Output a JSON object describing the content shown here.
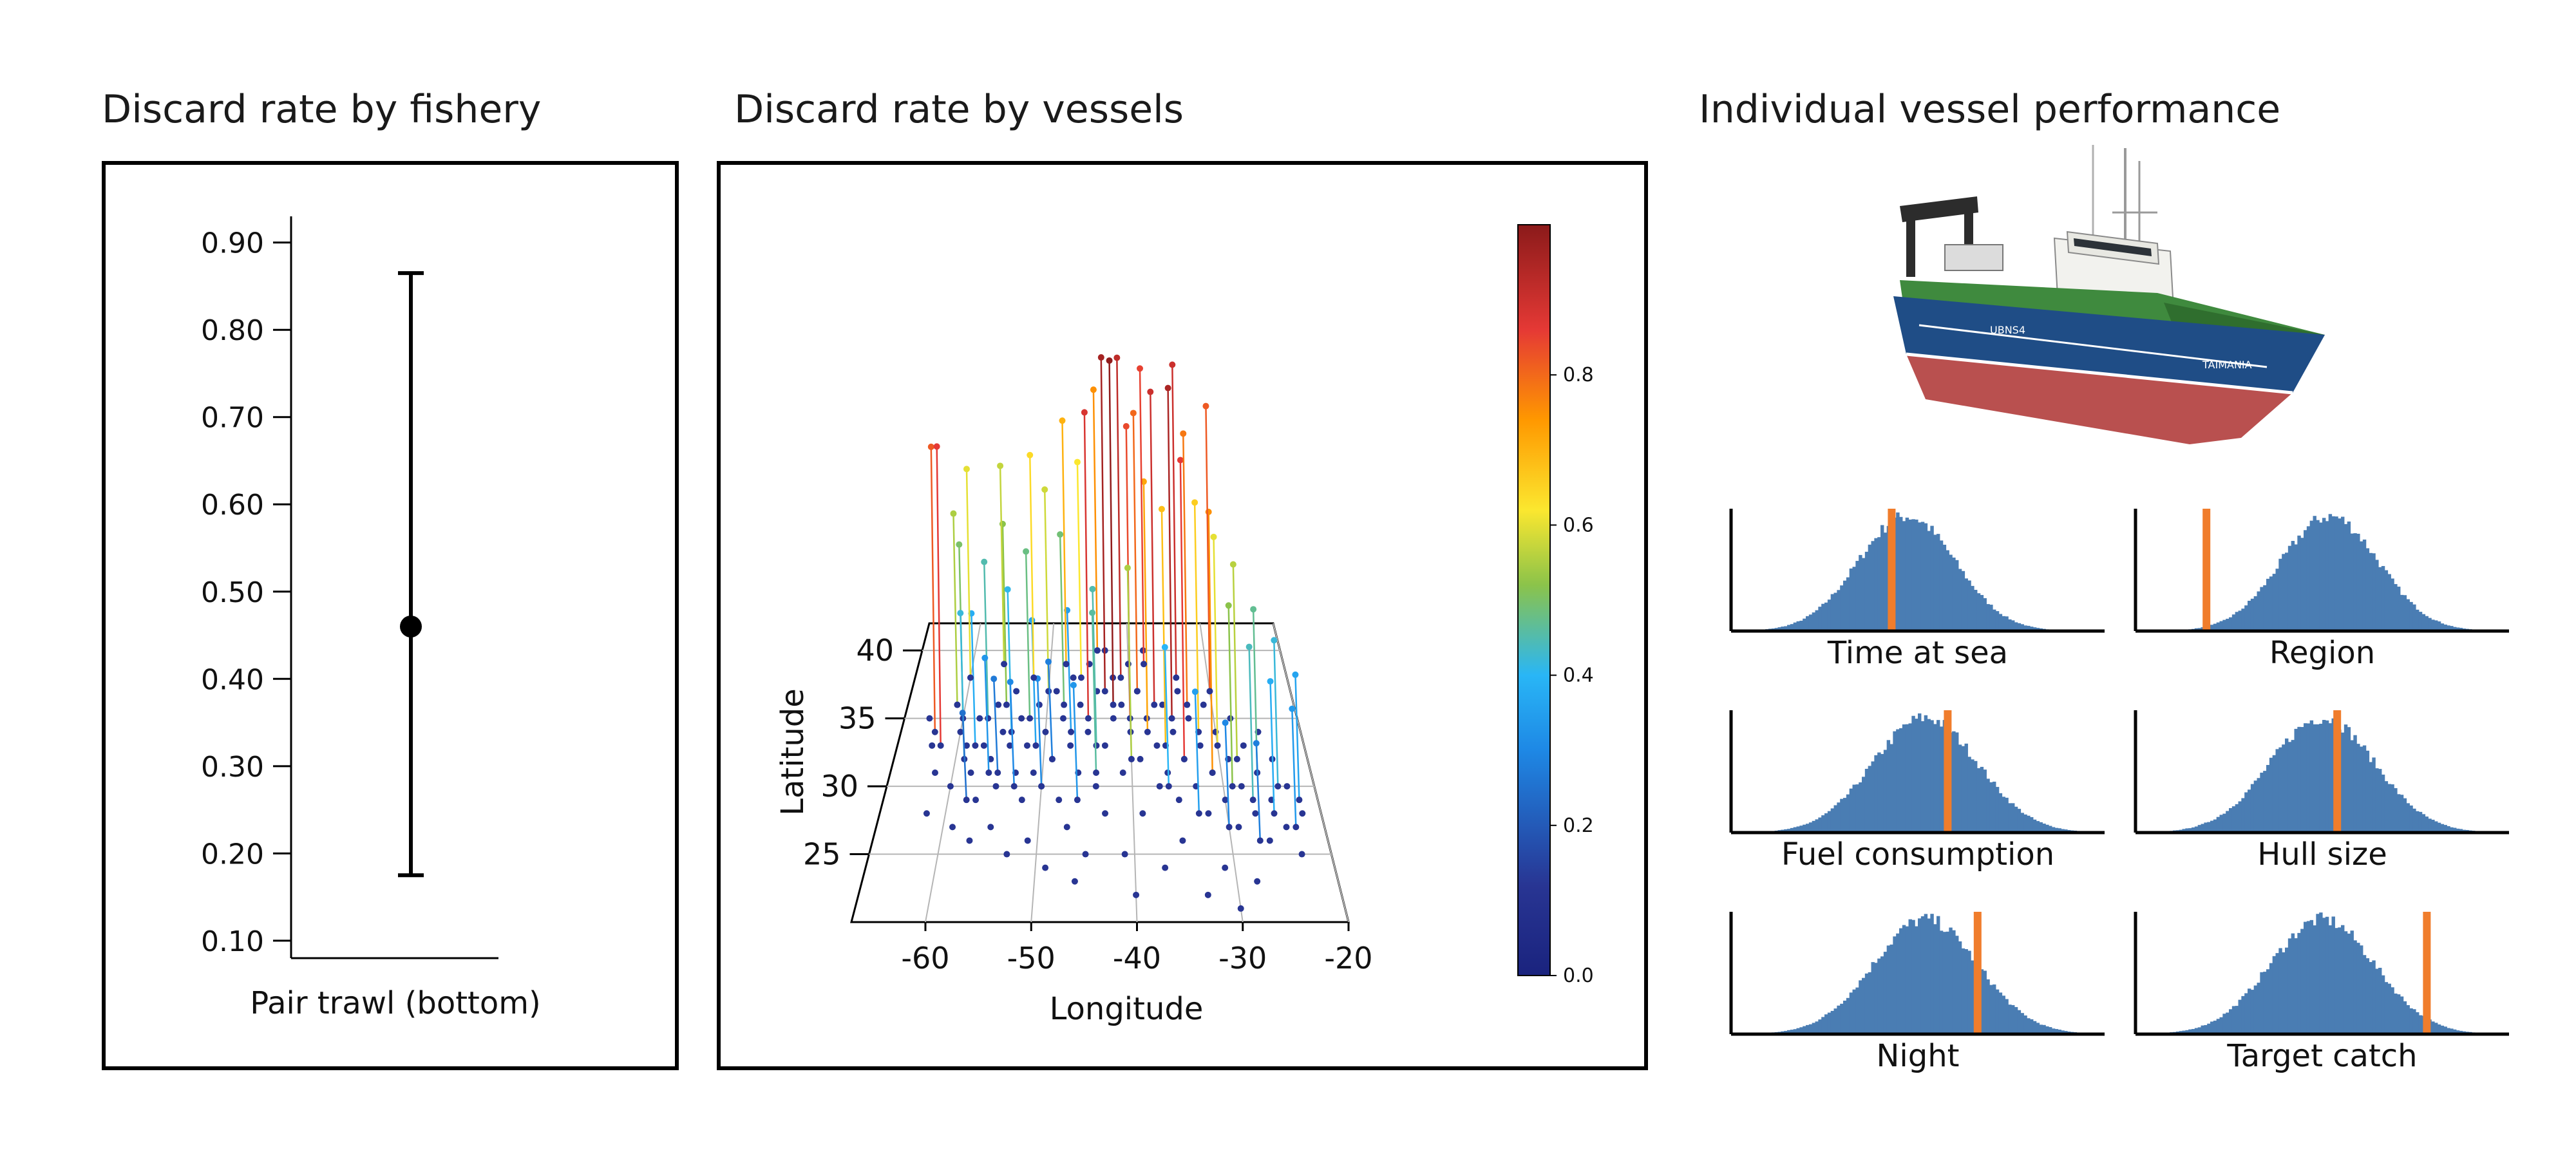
{
  "panels": {
    "fishery": {
      "title": "Discard rate by fishery"
    },
    "vessels": {
      "title": "Discard rate by vessels"
    },
    "performance": {
      "title": "Individual vessel performance"
    }
  },
  "vessel_image": {
    "name_on_hull": "TAIMANIA",
    "hull_code": "UBNS4",
    "colors": {
      "hull_blue": "#1f4d86",
      "hull_red": "#b9504f",
      "deck_green": "#3f8a3e",
      "superstructure": "#f2f2ee"
    }
  },
  "colors": {
    "accent": "#f07d2c",
    "histogram": "#4a7db3",
    "axis": "#000000"
  },
  "chart_data": [
    {
      "type": "errorbar",
      "title": "Discard rate by fishery",
      "categories": [
        "Pair trawl (bottom)"
      ],
      "point": 0.46,
      "lower": 0.175,
      "upper": 0.865,
      "ylim": [
        0.08,
        0.93
      ],
      "yticks": [
        "0.10",
        "0.20",
        "0.30",
        "0.40",
        "0.50",
        "0.60",
        "0.70",
        "0.80",
        "0.90"
      ],
      "ytick_values": [
        0.1,
        0.2,
        0.3,
        0.4,
        0.5,
        0.6,
        0.7,
        0.8,
        0.9
      ]
    },
    {
      "type": "scatter",
      "subtype": "3d-stem",
      "title": "Discard rate by vessels",
      "xlabel": "Longitude",
      "ylabel": "Latitude",
      "xlim": [
        -67,
        -20
      ],
      "ylim": [
        20,
        42
      ],
      "xticks": [
        "-60",
        "-50",
        "-40",
        "-30",
        "-20"
      ],
      "xtick_values": [
        -60,
        -50,
        -40,
        -30,
        -20
      ],
      "yticks": [
        "25",
        "30",
        "35",
        "40"
      ],
      "ytick_values": [
        25,
        30,
        35,
        40
      ],
      "colorbar": {
        "range": [
          0.0,
          1.0
        ],
        "ticks": [
          "0.0",
          "0.2",
          "0.4",
          "0.6",
          "0.8"
        ],
        "tick_values": [
          0.0,
          0.2,
          0.4,
          0.6,
          0.8
        ],
        "colormap": "jet"
      },
      "points": [
        [
          -63,
          34,
          0.82
        ],
        [
          -62,
          33,
          0.86
        ],
        [
          -61,
          36,
          0.55
        ],
        [
          -60,
          35,
          0.5
        ],
        [
          -59,
          32,
          0.42
        ],
        [
          -58,
          33,
          0.38
        ],
        [
          -57,
          35,
          0.45
        ],
        [
          -56,
          31,
          0.33
        ],
        [
          -55,
          36,
          0.52
        ],
        [
          -54,
          34,
          0.41
        ],
        [
          -53,
          30,
          0.3
        ],
        [
          -52,
          35,
          0.48
        ],
        [
          -51,
          33,
          0.36
        ],
        [
          -50,
          37,
          0.58
        ],
        [
          -49,
          32,
          0.28
        ],
        [
          -48,
          36,
          0.49
        ],
        [
          -47,
          34,
          0.35
        ],
        [
          -46,
          38,
          0.62
        ],
        [
          -45,
          35,
          0.88
        ],
        [
          -44,
          33,
          0.45
        ],
        [
          -43,
          37,
          0.96
        ],
        [
          -42,
          36,
          0.99
        ],
        [
          -41,
          38,
          0.92
        ],
        [
          -40,
          35,
          0.84
        ],
        [
          -39,
          37,
          0.8
        ],
        [
          -38,
          34,
          0.72
        ],
        [
          -37,
          36,
          0.9
        ],
        [
          -36,
          33,
          0.68
        ],
        [
          -35,
          35,
          0.95
        ],
        [
          -34,
          32,
          0.86
        ],
        [
          -33,
          36,
          0.78
        ],
        [
          -32,
          34,
          0.66
        ],
        [
          -31,
          31,
          0.75
        ],
        [
          -30,
          33,
          0.6
        ],
        [
          -29,
          30,
          0.52
        ],
        [
          -28,
          32,
          0.56
        ],
        [
          -27,
          29,
          0.44
        ],
        [
          -26,
          31,
          0.47
        ],
        [
          -25,
          28,
          0.38
        ],
        [
          -24,
          30,
          0.42
        ],
        [
          -23,
          27,
          0.34
        ],
        [
          -22,
          29,
          0.36
        ],
        [
          -58,
          29,
          0.25
        ],
        [
          -55,
          31,
          0.27
        ],
        [
          -50,
          30,
          0.31
        ],
        [
          -46,
          29,
          0.33
        ],
        [
          -44,
          31,
          0.46
        ],
        [
          -40,
          32,
          0.55
        ],
        [
          -36,
          30,
          0.4
        ],
        [
          -33,
          28,
          0.35
        ],
        [
          -30,
          27,
          0.3
        ],
        [
          -27,
          26,
          0.28
        ],
        [
          -52,
          38,
          0.64
        ],
        [
          -48,
          39,
          0.7
        ],
        [
          -44,
          40,
          0.75
        ],
        [
          -38,
          39,
          0.85
        ],
        [
          -34,
          38,
          0.9
        ],
        [
          -30,
          37,
          0.82
        ],
        [
          -60,
          38,
          0.6
        ],
        [
          -56,
          39,
          0.57
        ]
      ],
      "base_points": [
        [
          -64,
          35
        ],
        [
          -63,
          33
        ],
        [
          -62,
          31
        ],
        [
          -61,
          36
        ],
        [
          -60,
          34
        ],
        [
          -60,
          30
        ],
        [
          -59,
          33
        ],
        [
          -58,
          35
        ],
        [
          -58,
          31
        ],
        [
          -57,
          29
        ],
        [
          -57,
          33
        ],
        [
          -56,
          36
        ],
        [
          -56,
          32
        ],
        [
          -55,
          34
        ],
        [
          -55,
          30
        ],
        [
          -54,
          37
        ],
        [
          -54,
          33
        ],
        [
          -53,
          31
        ],
        [
          -53,
          35
        ],
        [
          -52,
          29
        ],
        [
          -52,
          33
        ],
        [
          -51,
          36
        ],
        [
          -51,
          31
        ],
        [
          -50,
          34
        ],
        [
          -50,
          30
        ],
        [
          -49,
          37
        ],
        [
          -49,
          32
        ],
        [
          -48,
          35
        ],
        [
          -48,
          29
        ],
        [
          -47,
          33
        ],
        [
          -47,
          38
        ],
        [
          -46,
          31
        ],
        [
          -46,
          36
        ],
        [
          -45,
          34
        ],
        [
          -45,
          39
        ],
        [
          -44,
          30
        ],
        [
          -44,
          37
        ],
        [
          -43,
          33
        ],
        [
          -43,
          40
        ],
        [
          -42,
          35
        ],
        [
          -42,
          38
        ],
        [
          -41,
          31
        ],
        [
          -41,
          36
        ],
        [
          -40,
          34
        ],
        [
          -40,
          39
        ],
        [
          -39,
          32
        ],
        [
          -39,
          37
        ],
        [
          -38,
          35
        ],
        [
          -38,
          40
        ],
        [
          -37,
          33
        ],
        [
          -37,
          30
        ],
        [
          -36,
          36
        ],
        [
          -36,
          31
        ],
        [
          -35,
          34
        ],
        [
          -35,
          29
        ],
        [
          -34,
          37
        ],
        [
          -34,
          32
        ],
        [
          -33,
          35
        ],
        [
          -33,
          30
        ],
        [
          -32,
          33
        ],
        [
          -32,
          28
        ],
        [
          -31,
          36
        ],
        [
          -31,
          31
        ],
        [
          -30,
          34
        ],
        [
          -30,
          29
        ],
        [
          -29,
          32
        ],
        [
          -29,
          27
        ],
        [
          -28,
          35
        ],
        [
          -28,
          30
        ],
        [
          -27,
          33
        ],
        [
          -27,
          28
        ],
        [
          -26,
          31
        ],
        [
          -26,
          26
        ],
        [
          -25,
          34
        ],
        [
          -25,
          29
        ],
        [
          -24,
          32
        ],
        [
          -24,
          27
        ],
        [
          -23,
          30
        ],
        [
          -23,
          25
        ],
        [
          -22,
          28
        ],
        [
          -59,
          27
        ],
        [
          -55,
          27
        ],
        [
          -51,
          26
        ],
        [
          -47,
          27
        ],
        [
          -43,
          28
        ],
        [
          -39,
          28
        ],
        [
          -35,
          26
        ],
        [
          -31,
          24
        ],
        [
          -28,
          23
        ],
        [
          -33,
          22
        ],
        [
          -37,
          24
        ],
        [
          -41,
          25
        ],
        [
          -45,
          25
        ],
        [
          -49,
          24
        ],
        [
          -53,
          25
        ],
        [
          -57,
          26
        ],
        [
          -62,
          28
        ],
        [
          -46,
          23
        ],
        [
          -40,
          22
        ],
        [
          -30,
          21
        ]
      ]
    },
    {
      "type": "histogram",
      "title": "Time at sea",
      "marker": 0.43,
      "hist": {
        "mean": 0.47,
        "sd": 0.13
      }
    },
    {
      "type": "histogram",
      "title": "Region",
      "marker": 0.19,
      "hist": {
        "mean": 0.52,
        "sd": 0.13
      }
    },
    {
      "type": "histogram",
      "title": "Fuel consumption",
      "marker": 0.58,
      "hist": {
        "mean": 0.52,
        "sd": 0.14
      }
    },
    {
      "type": "histogram",
      "title": "Hull size",
      "marker": 0.54,
      "hist": {
        "mean": 0.5,
        "sd": 0.14
      }
    },
    {
      "type": "histogram",
      "title": "Night",
      "marker": 0.66,
      "hist": {
        "mean": 0.52,
        "sd": 0.14
      }
    },
    {
      "type": "histogram",
      "title": "Target catch",
      "marker": 0.78,
      "hist": {
        "mean": 0.5,
        "sd": 0.14
      }
    }
  ]
}
